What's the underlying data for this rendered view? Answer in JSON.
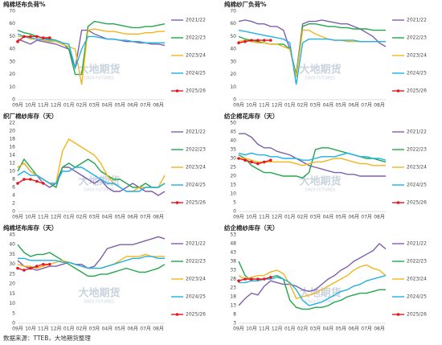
{
  "watermark": "大地期货",
  "watermark_sub": "DADI FUTURES",
  "footer": "数据来源：TTEB，大地期货整理",
  "chart_data": [
    {
      "type": "line",
      "title": "纯棉坯布负荷%",
      "categories": [
        "09月",
        null,
        "10月",
        null,
        "11月",
        null,
        "12月",
        null,
        "01月",
        null,
        "02月",
        null,
        "03月",
        null,
        "04月",
        null,
        "05月",
        null,
        "06月",
        null,
        "07月",
        null,
        "08月",
        null
      ],
      "ylim": [
        0,
        70
      ],
      "yticks": [
        0,
        10,
        20,
        30,
        40,
        50,
        60,
        70
      ],
      "grid": false,
      "series": [
        {
          "name": "2021/22",
          "color": "#7f5fad",
          "values": [
            48,
            46,
            44,
            47,
            46,
            45,
            44,
            42,
            40,
            25,
            55,
            55,
            52,
            50,
            48,
            48,
            47,
            46,
            46,
            45,
            45,
            44,
            44,
            43
          ]
        },
        {
          "name": "2022/23",
          "color": "#22a64a",
          "values": [
            55,
            53,
            52,
            50,
            49,
            48,
            47,
            45,
            40,
            20,
            20,
            58,
            62,
            61,
            60,
            60,
            59,
            58,
            57,
            57,
            58,
            58,
            59,
            60
          ]
        },
        {
          "name": "2023/24",
          "color": "#f2b51c",
          "values": [
            50,
            50,
            48,
            48,
            47,
            46,
            46,
            44,
            42,
            40,
            12,
            55,
            56,
            55,
            54,
            54,
            53,
            52,
            52,
            52,
            53,
            53,
            54,
            54
          ]
        },
        {
          "name": "2024/25",
          "color": "#20b1e6",
          "values": [
            52,
            50,
            49,
            48,
            48,
            47,
            47,
            45,
            44,
            25,
            40,
            50,
            50,
            49,
            48,
            48,
            47,
            47,
            46,
            46,
            45,
            45,
            45,
            45
          ]
        },
        {
          "name": "2025/26",
          "color": "#e8141b",
          "markers": true,
          "values": [
            46,
            50,
            50,
            50,
            49,
            49,
            null,
            null,
            null,
            null,
            null,
            null,
            null,
            null,
            null,
            null,
            null,
            null,
            null,
            null,
            null,
            null,
            null,
            null
          ]
        }
      ]
    },
    {
      "type": "line",
      "title": "纯棉纱厂负荷%",
      "categories": [
        "09月",
        null,
        "10月",
        null,
        "11月",
        null,
        "12月",
        null,
        "01月",
        null,
        "02月",
        null,
        "03月",
        null,
        "04月",
        null,
        "05月",
        null,
        "06月",
        null,
        "07月",
        null,
        "08月",
        null
      ],
      "ylim": [
        0,
        70
      ],
      "yticks": [
        0,
        10,
        20,
        30,
        40,
        50,
        60,
        70
      ],
      "grid": false,
      "series": [
        {
          "name": "2021/22",
          "color": "#7f5fad",
          "values": [
            62,
            63,
            62,
            60,
            60,
            58,
            58,
            55,
            40,
            20,
            60,
            62,
            62,
            63,
            62,
            61,
            60,
            60,
            58,
            56,
            53,
            50,
            45,
            42
          ]
        },
        {
          "name": "2022/23",
          "color": "#22a64a",
          "values": [
            50,
            48,
            47,
            46,
            45,
            44,
            44,
            44,
            40,
            20,
            58,
            60,
            60,
            59,
            58,
            58,
            57,
            57,
            56,
            56,
            56,
            55,
            55,
            55
          ]
        },
        {
          "name": "2023/24",
          "color": "#f2b51c",
          "values": [
            46,
            47,
            46,
            45,
            45,
            44,
            44,
            42,
            40,
            18,
            55,
            55,
            52,
            50,
            48,
            47,
            47,
            46,
            46,
            46,
            46,
            46,
            46,
            46
          ]
        },
        {
          "name": "2024/25",
          "color": "#20b1e6",
          "values": [
            55,
            54,
            53,
            52,
            51,
            50,
            49,
            48,
            45,
            12,
            45,
            48,
            48,
            48,
            48,
            47,
            47,
            47,
            47,
            46,
            46,
            46,
            46,
            46
          ]
        },
        {
          "name": "2025/26",
          "color": "#e8141b",
          "markers": true,
          "values": [
            45,
            46,
            47,
            47,
            47,
            47,
            null,
            null,
            null,
            null,
            null,
            null,
            null,
            null,
            null,
            null,
            null,
            null,
            null,
            null,
            null,
            null,
            null,
            null
          ]
        }
      ]
    },
    {
      "type": "line",
      "title": "织厂棉纱库存（天）",
      "categories": [
        "09月",
        null,
        "10月",
        null,
        "11月",
        null,
        "12月",
        null,
        "01月",
        null,
        "02月",
        null,
        "03月",
        null,
        "04月",
        null,
        "05月",
        null,
        "06月",
        null,
        "07月",
        null,
        "08月",
        null
      ],
      "ylim": [
        0,
        22
      ],
      "yticks": [
        0,
        2,
        4,
        6,
        8,
        10,
        12,
        14,
        16,
        18,
        20,
        22
      ],
      "grid": false,
      "series": [
        {
          "name": "2021/22",
          "color": "#7f5fad",
          "values": [
            11,
            12,
            10,
            9,
            7,
            6,
            7,
            11,
            11,
            10,
            9,
            8,
            7,
            8,
            6,
            5,
            5,
            6,
            7,
            6,
            5,
            5,
            4,
            5
          ]
        },
        {
          "name": "2022/23",
          "color": "#22a64a",
          "values": [
            10,
            13,
            11,
            9,
            8,
            7,
            6,
            11,
            12,
            11,
            12,
            13,
            12,
            10,
            9,
            8,
            8,
            7,
            6,
            6,
            7,
            6,
            6,
            7
          ]
        },
        {
          "name": "2023/24",
          "color": "#f2b51c",
          "values": [
            11,
            12,
            10,
            9,
            8,
            7,
            7,
            15,
            18,
            17,
            16,
            15,
            14,
            12,
            9,
            7,
            6,
            5,
            5,
            6,
            6,
            6,
            6,
            9
          ]
        },
        {
          "name": "2024/25",
          "color": "#20b1e6",
          "values": [
            9,
            10,
            9,
            9,
            8,
            7,
            7,
            10,
            10,
            11,
            11,
            10,
            9,
            8,
            7,
            7,
            6,
            5,
            5,
            5,
            6,
            6,
            6,
            7
          ]
        },
        {
          "name": "2025/26",
          "color": "#e8141b",
          "markers": true,
          "values": [
            7,
            8,
            8,
            7.5,
            7,
            null,
            null,
            null,
            null,
            null,
            null,
            null,
            null,
            null,
            null,
            null,
            null,
            null,
            null,
            null,
            null,
            null,
            null,
            null
          ]
        }
      ]
    },
    {
      "type": "line",
      "title": "纺企棉花库存（天）",
      "categories": [
        "09月",
        null,
        "10月",
        null,
        "11月",
        null,
        "12月",
        null,
        "01月",
        null,
        "02月",
        null,
        "03月",
        null,
        "04月",
        null,
        "05月",
        null,
        "06月",
        null,
        "07月",
        null,
        "08月",
        null
      ],
      "ylim": [
        0,
        50
      ],
      "yticks": [
        0,
        5,
        10,
        15,
        20,
        25,
        30,
        35,
        40,
        45,
        50
      ],
      "grid": false,
      "series": [
        {
          "name": "2021/22",
          "color": "#7f5fad",
          "values": [
            44,
            44,
            42,
            38,
            36,
            36,
            34,
            33,
            32,
            30,
            28,
            26,
            25,
            24,
            23,
            22,
            22,
            21,
            21,
            20,
            20,
            20,
            20,
            20
          ]
        },
        {
          "name": "2022/23",
          "color": "#22a64a",
          "values": [
            32,
            30,
            26,
            24,
            22,
            22,
            21,
            20,
            20,
            20,
            19,
            22,
            35,
            36,
            36,
            35,
            34,
            33,
            32,
            31,
            30,
            30,
            29,
            28
          ]
        },
        {
          "name": "2023/24",
          "color": "#f2b51c",
          "values": [
            30,
            30,
            29,
            28,
            28,
            28,
            28,
            28,
            28,
            27,
            26,
            27,
            28,
            28,
            29,
            30,
            30,
            29,
            28,
            27,
            27,
            26,
            26,
            26
          ]
        },
        {
          "name": "2024/25",
          "color": "#20b1e6",
          "values": [
            33,
            32,
            33,
            32,
            32,
            31,
            31,
            30,
            30,
            30,
            29,
            29,
            30,
            31,
            31,
            31,
            32,
            33,
            32,
            31,
            31,
            30,
            30,
            29
          ]
        },
        {
          "name": "2025/26",
          "color": "#e8141b",
          "markers": true,
          "values": [
            30,
            29,
            28,
            27,
            28,
            29,
            null,
            null,
            null,
            null,
            null,
            null,
            null,
            null,
            null,
            null,
            null,
            null,
            null,
            null,
            null,
            null,
            null,
            null
          ]
        }
      ]
    },
    {
      "type": "line",
      "title": "纯棉坯布库存（天）",
      "categories": [
        "09月",
        null,
        "10月",
        null,
        "11月",
        null,
        "12月",
        null,
        "01月",
        null,
        "02月",
        null,
        "03月",
        null,
        "04月",
        null,
        "05月",
        null,
        "06月",
        null,
        "07月",
        null,
        "08月",
        null
      ],
      "ylim": [
        0,
        45
      ],
      "yticks": [
        0,
        5,
        10,
        15,
        20,
        25,
        30,
        35,
        40,
        45
      ],
      "grid": false,
      "series": [
        {
          "name": "2021/22",
          "color": "#7f5fad",
          "values": [
            32,
            29,
            28,
            27,
            28,
            29,
            29,
            30,
            31,
            30,
            30,
            28,
            29,
            33,
            38,
            39,
            40,
            40,
            40,
            41,
            42,
            43,
            44,
            43
          ]
        },
        {
          "name": "2022/23",
          "color": "#22a64a",
          "values": [
            40,
            36,
            34,
            35,
            35,
            36,
            34,
            32,
            30,
            28,
            26,
            24,
            24,
            25,
            25,
            26,
            27,
            28,
            27,
            26,
            26,
            27,
            28,
            30
          ]
        },
        {
          "name": "2023/24",
          "color": "#f2b51c",
          "values": [
            30,
            29,
            29,
            28,
            29,
            30,
            31,
            32,
            31,
            30,
            29,
            28,
            28,
            28,
            29,
            30,
            32,
            34,
            34,
            34,
            35,
            34,
            34,
            34
          ]
        },
        {
          "name": "2024/25",
          "color": "#20b1e6",
          "values": [
            33,
            33,
            32,
            32,
            32,
            32,
            32,
            31,
            31,
            30,
            29,
            28,
            28,
            28,
            29,
            30,
            31,
            32,
            33,
            33,
            34,
            34,
            33,
            33
          ]
        },
        {
          "name": "2025/26",
          "color": "#e8141b",
          "markers": true,
          "values": [
            28,
            27,
            28,
            29,
            30,
            30,
            null,
            null,
            null,
            null,
            null,
            null,
            null,
            null,
            null,
            null,
            null,
            null,
            null,
            null,
            null,
            null,
            null,
            null
          ]
        }
      ]
    },
    {
      "type": "line",
      "title": "纺企棉纱库存（天）",
      "categories": [
        "09月",
        null,
        "10月",
        null,
        "11月",
        null,
        "12月",
        null,
        "01月",
        null,
        "02月",
        null,
        "03月",
        null,
        "04月",
        null,
        "05月",
        null,
        "06月",
        null,
        "07月",
        null,
        "08月",
        null
      ],
      "ylim": [
        3,
        53
      ],
      "yticks": [
        3,
        8,
        13,
        18,
        23,
        28,
        33,
        38,
        43,
        48,
        53
      ],
      "grid": false,
      "series": [
        {
          "name": "2021/22",
          "color": "#7f5fad",
          "values": [
            13,
            17,
            20,
            19,
            24,
            27,
            26,
            25,
            25,
            24,
            22,
            21,
            22,
            25,
            28,
            30,
            33,
            35,
            38,
            40,
            42,
            44,
            48,
            45
          ]
        },
        {
          "name": "2022/23",
          "color": "#22a64a",
          "values": [
            38,
            30,
            27,
            27,
            28,
            29,
            30,
            28,
            16,
            12,
            11,
            11,
            12,
            12,
            13,
            15,
            16,
            18,
            19,
            20,
            20,
            21,
            22,
            22
          ]
        },
        {
          "name": "2023/24",
          "color": "#f2b51c",
          "values": [
            30,
            28,
            29,
            30,
            30,
            32,
            33,
            31,
            25,
            17,
            18,
            19,
            20,
            22,
            24,
            26,
            28,
            30,
            33,
            35,
            36,
            34,
            33,
            30
          ]
        },
        {
          "name": "2024/25",
          "color": "#20b1e6",
          "values": [
            26,
            26,
            27,
            27,
            28,
            28,
            29,
            28,
            26,
            22,
            16,
            13,
            14,
            15,
            17,
            19,
            21,
            22,
            24,
            25,
            27,
            28,
            29,
            30
          ]
        },
        {
          "name": "2025/26",
          "color": "#e8141b",
          "markers": true,
          "values": [
            27,
            28,
            28,
            28,
            28,
            29,
            null,
            null,
            null,
            null,
            null,
            null,
            null,
            null,
            null,
            null,
            null,
            null,
            null,
            null,
            null,
            null,
            null,
            null
          ]
        }
      ]
    }
  ]
}
